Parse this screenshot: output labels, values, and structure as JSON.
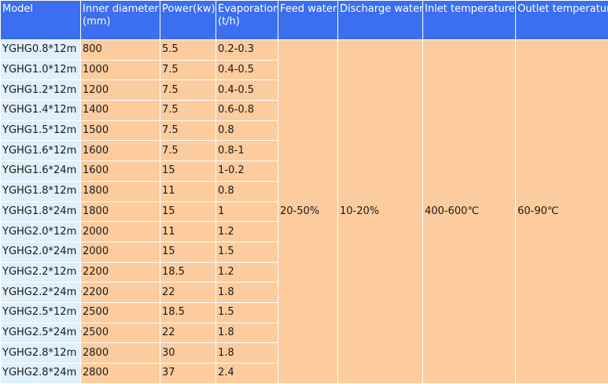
{
  "headers": [
    [
      "Model"
    ],
    [
      "Inner diameter",
      "(mm)"
    ],
    [
      "Power(kw)"
    ],
    [
      "Evaporation",
      "(t/h)"
    ],
    [
      "Feed water"
    ],
    [
      "Discharge water"
    ],
    [
      "Inlet temperature"
    ],
    [
      "Outlet temperature"
    ]
  ],
  "rows": [
    {
      "model": "YGHG0.8*12m",
      "diameter": "800",
      "power": "5.5",
      "evaporation": "0.2-0.3"
    },
    {
      "model": "YGHG1.0*12m",
      "diameter": "1000",
      "power": "7.5",
      "evaporation": "0.4-0.5"
    },
    {
      "model": "YGHG1.2*12m",
      "diameter": "1200",
      "power": "7.5",
      "evaporation": "0.4-0.5"
    },
    {
      "model": "YGHG1.4*12m",
      "diameter": "1400",
      "power": "7.5",
      "evaporation": "0.6-0.8"
    },
    {
      "model": "YGHG1.5*12m",
      "diameter": "1500",
      "power": "7.5",
      "evaporation": "0.8"
    },
    {
      "model": "YGHG1.6*12m",
      "diameter": "1600",
      "power": "7.5",
      "evaporation": "0.8-1"
    },
    {
      "model": "YGHG1.6*24m",
      "diameter": "1600",
      "power": "15",
      "evaporation": "1-0.2"
    },
    {
      "model": "YGHG1.8*12m",
      "diameter": "1800",
      "power": "11",
      "evaporation": "0.8"
    },
    {
      "model": "YGHG1.8*24m",
      "diameter": "1800",
      "power": "15",
      "evaporation": "1"
    },
    {
      "model": "YGHG2.0*12m",
      "diameter": "2000",
      "power": "11",
      "evaporation": "1.2"
    },
    {
      "model": "YGHG2.0*24m",
      "diameter": "2000",
      "power": "15",
      "evaporation": "1.5"
    },
    {
      "model": "YGHG2.2*12m",
      "diameter": "2200",
      "power": "18.5",
      "evaporation": "1.2"
    },
    {
      "model": "YGHG2.2*24m",
      "diameter": "2200",
      "power": "22",
      "evaporation": "1.8"
    },
    {
      "model": "YGHG2.5*12m",
      "diameter": "2500",
      "power": "18.5",
      "evaporation": "1.5"
    },
    {
      "model": "YGHG2.5*24m",
      "diameter": "2500",
      "power": "22",
      "evaporation": "1.8"
    },
    {
      "model": "YGHG2.8*12m",
      "diameter": "2800",
      "power": "30",
      "evaporation": "1.8"
    },
    {
      "model": "YGHG2.8*24m",
      "diameter": "2800",
      "power": "37",
      "evaporation": "2.4"
    }
  ],
  "shared": {
    "feed_water": "20-50%",
    "discharge_water": "10-20%",
    "inlet_temperature": "400-600℃",
    "outlet_temperature": "60-90℃"
  },
  "colors": {
    "header_bg": "#3b6ff0",
    "model_cell_bg": "#e0f0fd",
    "value_cell_bg": "#fccc9e"
  }
}
